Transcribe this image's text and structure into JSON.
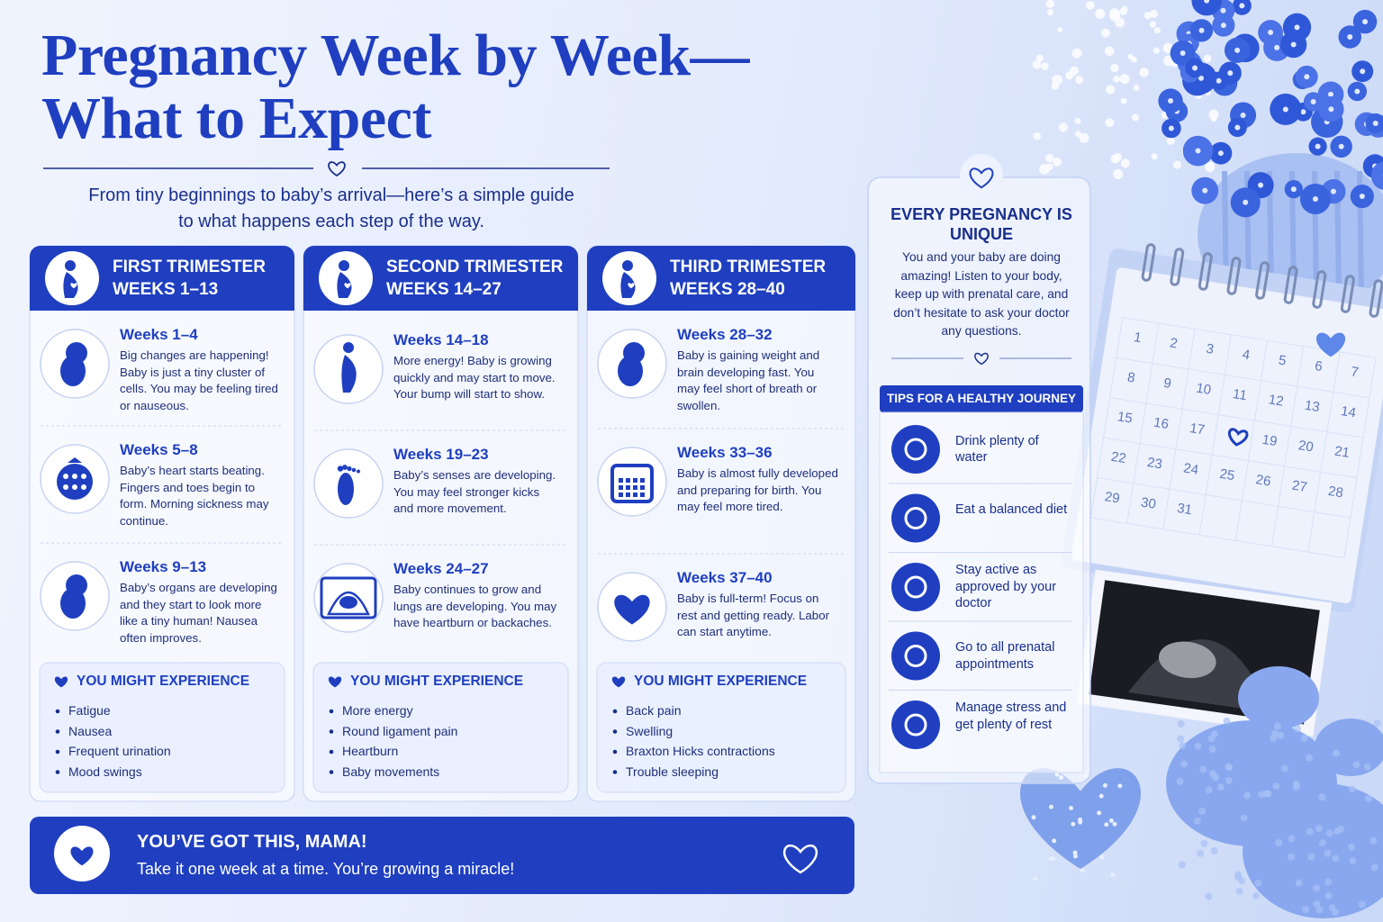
{
  "header": {
    "title": [
      "Pregnancy Week by Week—",
      "What to Expect"
    ],
    "subtitle": [
      "From tiny beginnings to baby’s arrival—here’s a simple guide",
      "to what happens each step of the way."
    ]
  },
  "trimesters": [
    {
      "title": "FIRST TRIMESTER",
      "weeks": "WEEKS 1–13",
      "stages": [
        {
          "weeks": "Weeks 1–4",
          "text": "Big changes are happening! Baby is just a tiny cluster of cells. You may be feeling tired or nauseous."
        },
        {
          "weeks": "Weeks 5–8",
          "text": "Baby’s heart starts beating. Fingers and toes begin to form. Morning sickness may continue."
        },
        {
          "weeks": "Weeks 9–13",
          "text": "Baby’s organs are developing and they start to look more like a tiny human! Nausea often improves."
        }
      ],
      "experience_title": "YOU MIGHT EXPERIENCE",
      "experience": [
        "Fatigue",
        "Nausea",
        "Frequent urination",
        "Mood swings"
      ]
    },
    {
      "title": "SECOND TRIMESTER",
      "weeks": "WEEKS 14–27",
      "stages": [
        {
          "weeks": "Weeks 14–18",
          "text": "More energy! Baby is growing quickly and may start to move. Your bump will start to show."
        },
        {
          "weeks": "Weeks 19–23",
          "text": "Baby’s senses are developing. You may feel stronger kicks and more movement."
        },
        {
          "weeks": "Weeks 24–27",
          "text": "Baby continues to grow and lungs are developing. You may have heartburn or backaches."
        }
      ],
      "experience_title": "YOU MIGHT EXPERIENCE",
      "experience": [
        "More energy",
        "Round ligament pain",
        "Heartburn",
        "Baby movements"
      ]
    },
    {
      "title": "THIRD TRIMESTER",
      "weeks": "WEEKS 28–40",
      "stages": [
        {
          "weeks": "Weeks 28–32",
          "text": "Baby is gaining weight and brain developing fast. You may feel short of breath or swollen."
        },
        {
          "weeks": "Weeks 33–36",
          "text": "Baby is almost fully developed and preparing for birth. You may feel more tired."
        },
        {
          "weeks": "Weeks 37–40",
          "text": "Baby is full-term! Focus on rest and getting ready. Labor can start anytime."
        }
      ],
      "experience_title": "YOU MIGHT EXPERIENCE",
      "experience": [
        "Back pain",
        "Swelling",
        "Braxton Hicks contractions",
        "Trouble sleeping"
      ]
    }
  ],
  "sidebar": {
    "title": "EVERY PREGNANCY IS UNIQUE",
    "text": "You and your baby are doing amazing! Listen to your body, keep up with prenatal care, and don’t hesitate to ask your doctor any questions.",
    "tips_title": "TIPS FOR A HEALTHY JOURNEY",
    "tips": [
      "Drink plenty of water",
      "Eat a balanced diet",
      "Stay active as approved by your doctor",
      "Go to all prenatal appointments",
      "Manage stress and get plenty of rest"
    ]
  },
  "footer": {
    "title": "YOU’VE GOT THIS, MAMA!",
    "text": "Take it one week at a time. You’re growing a miracle!"
  },
  "calendar": {
    "days": [
      1,
      2,
      3,
      4,
      5,
      6,
      7,
      8,
      9,
      10,
      11,
      12,
      13,
      14,
      15,
      16,
      17,
      null,
      19,
      20,
      21,
      22,
      23,
      24,
      25,
      26,
      27,
      28,
      29,
      30,
      31
    ]
  }
}
